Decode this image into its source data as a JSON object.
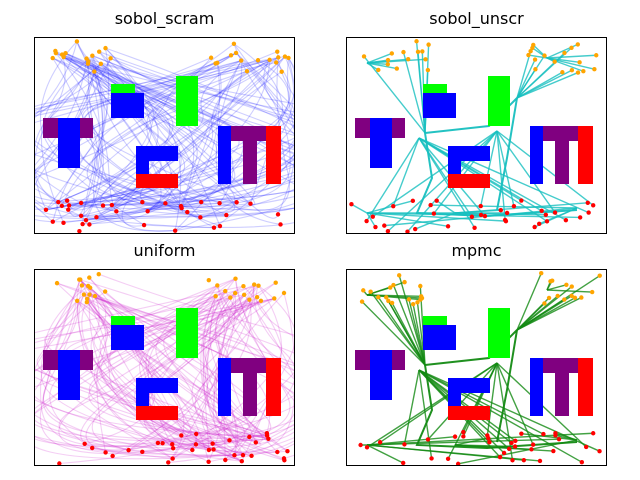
{
  "colors": {
    "background": "#ffffff",
    "start_point": "#ffa500",
    "goal_point": "#ff0000",
    "obstacle_purple": "#800080",
    "obstacle_blue": "#0000ff",
    "obstacle_green": "#00ff00",
    "obstacle_red": "#ff0000"
  },
  "chart_data": [
    {
      "type": "line",
      "title": "sobol_scram",
      "xlabel": "",
      "ylabel": "",
      "grid": false,
      "legend": "none",
      "path_color": "#1f1fff",
      "path_style": "dense-translucent",
      "path_count": 120
    },
    {
      "type": "line",
      "title": "sobol_unscr",
      "xlabel": "",
      "ylabel": "",
      "grid": false,
      "legend": "none",
      "path_color": "#17bfbf",
      "path_style": "tree",
      "path_count": 40
    },
    {
      "type": "line",
      "title": "uniform",
      "xlabel": "",
      "ylabel": "",
      "grid": false,
      "legend": "none",
      "path_color": "#cc22cc",
      "path_style": "dense-translucent",
      "path_count": 120
    },
    {
      "type": "line",
      "title": "mpmc",
      "xlabel": "",
      "ylabel": "",
      "grid": false,
      "legend": "none",
      "path_color": "#138a13",
      "path_style": "tree",
      "path_count": 40
    }
  ]
}
